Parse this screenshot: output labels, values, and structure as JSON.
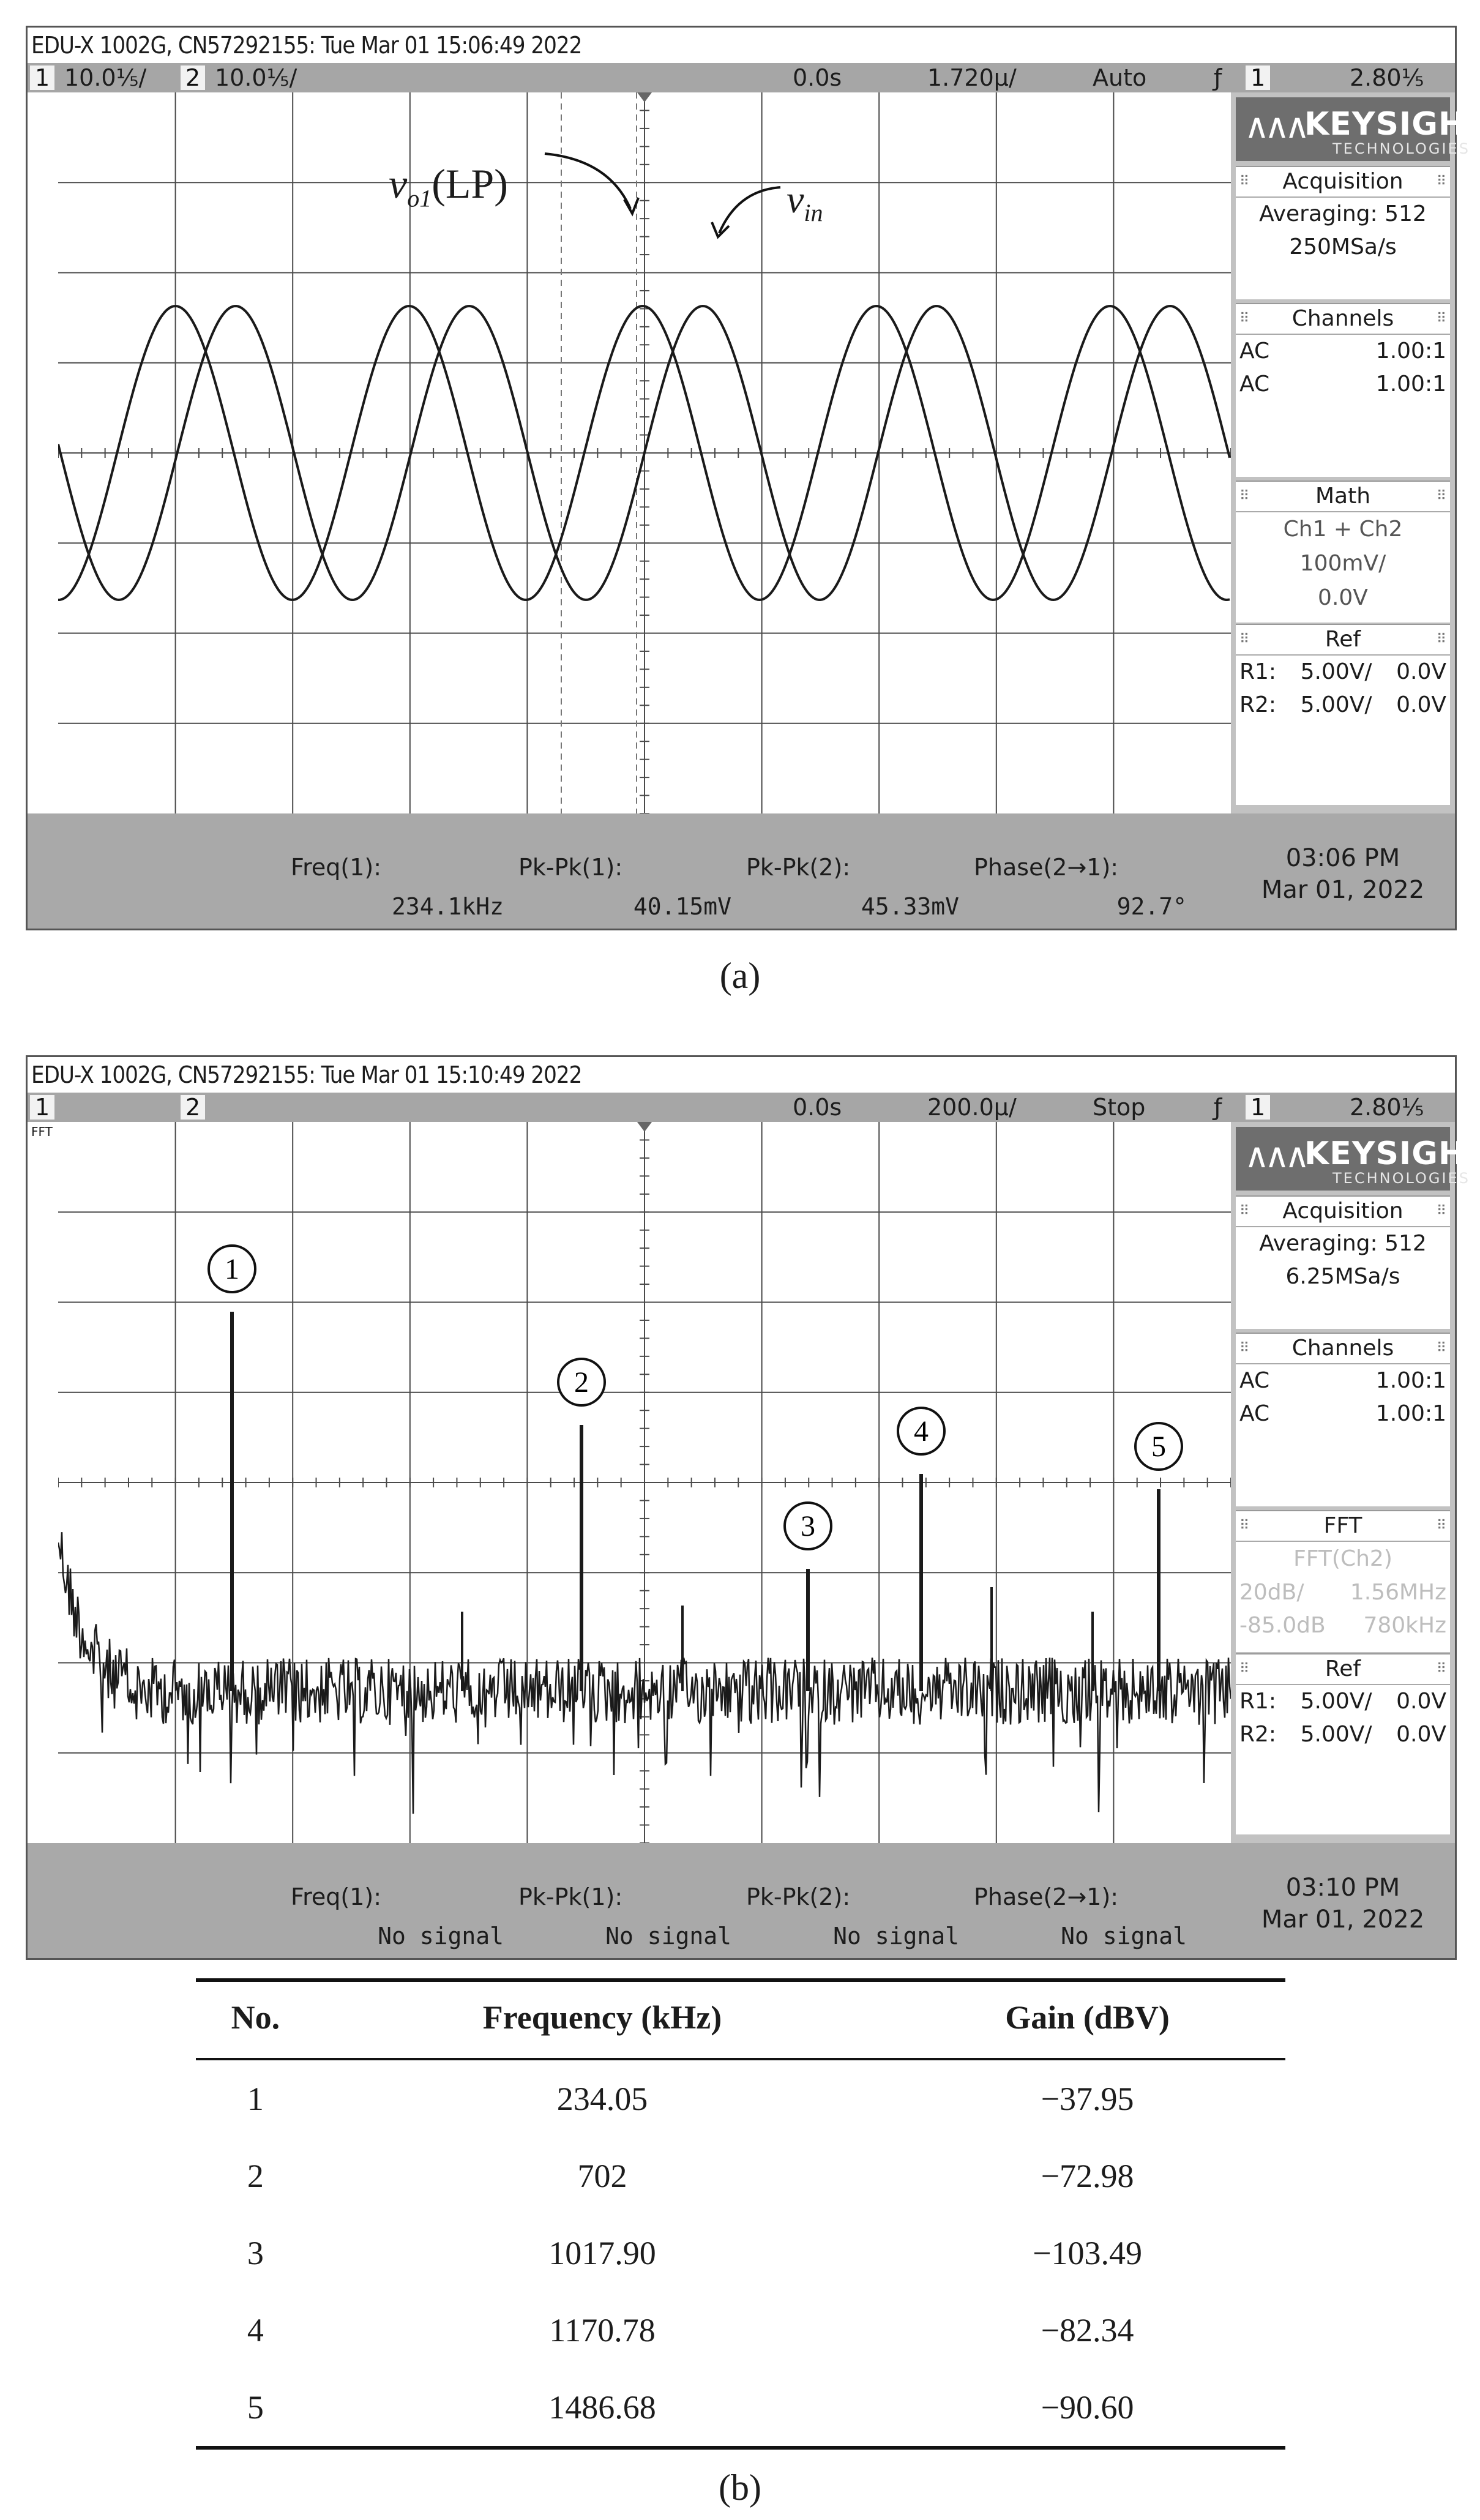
{
  "colors": {
    "trace": "#1a1a1a",
    "grid": "#4a4a4a",
    "statusbar": "#a6a6a6",
    "panel": "#c2c2c2",
    "logo_bg": "#6e6e6e"
  },
  "scope_a": {
    "title": "EDU-X 1002G, CN57292155: Tue Mar 01 15:06:49 2022",
    "ch1_box": "1",
    "ch1_scale": "10.0⅕/",
    "ch2_box": "2",
    "ch2_scale": "10.0⅕/",
    "time_offset": "0.0s",
    "timebase": "1.720µ/",
    "trigger_mode": "Auto",
    "trig_icon": "ƒ",
    "trig_ch": "1",
    "trig_level": "2.80⅕",
    "brand_name": "KEYSIGHT",
    "brand_sub": "TECHNOLOGIES",
    "acq_title": "Acquisition",
    "acq_mode": "Averaging: 512",
    "acq_rate": "250MSa/s",
    "channels_title": "Channels",
    "channels": [
      {
        "coupling": "AC",
        "probe": "1.00:1"
      },
      {
        "coupling": "AC",
        "probe": "1.00:1"
      }
    ],
    "math_title": "Math",
    "math_lines": [
      "Ch1 + Ch2",
      "100mV/",
      "0.0V"
    ],
    "ref_title": "Ref",
    "refs": [
      {
        "name": "R1:",
        "scale": "5.00V/",
        "offset": "0.0V"
      },
      {
        "name": "R2:",
        "scale": "5.00V/",
        "offset": "0.0V"
      }
    ],
    "measurements": [
      {
        "label": "Freq(1):",
        "value": "234.1kHz"
      },
      {
        "label": "Pk-Pk(1):",
        "value": "40.15mV"
      },
      {
        "label": "Pk-Pk(2):",
        "value": "45.33mV"
      },
      {
        "label": "Phase(2→1):",
        "value": "92.7°"
      }
    ],
    "clock_time": "03:06 PM",
    "clock_date": "Mar 01, 2022",
    "annotation_vo1_main": "v",
    "annotation_vo1_sub": "o1",
    "annotation_vo1_rest": "(LP)",
    "annotation_vin_main": "v",
    "annotation_vin_sub": "in",
    "waveform": {
      "periods_on_screen": 5.02,
      "amplitude_vo1_div": 1.63,
      "amplitude_vin_div": 1.63,
      "phase_deg": 92.7
    }
  },
  "caption_a": "(a)",
  "scope_b": {
    "title": "EDU-X 1002G, CN57292155: Tue Mar 01 15:10:49 2022",
    "ch1_box": "1",
    "ch2_box": "2",
    "time_offset": "0.0s",
    "timebase": "200.0µ/",
    "trigger_mode": "Stop",
    "trig_icon": "ƒ",
    "trig_ch": "1",
    "trig_level": "2.80⅕",
    "fft_marker": "FFT",
    "brand_name": "KEYSIGHT",
    "brand_sub": "TECHNOLOGIES",
    "acq_title": "Acquisition",
    "acq_mode": "Averaging: 512",
    "acq_rate": "6.25MSa/s",
    "channels_title": "Channels",
    "channels": [
      {
        "coupling": "AC",
        "probe": "1.00:1"
      },
      {
        "coupling": "AC",
        "probe": "1.00:1"
      }
    ],
    "fft_title": "FFT",
    "fft_source": "FFT(Ch2)",
    "fft_rows": [
      {
        "left": "20dB/",
        "right": "1.56MHz"
      },
      {
        "left": "-85.0dB",
        "right": "780kHz"
      }
    ],
    "ref_title": "Ref",
    "refs": [
      {
        "name": "R1:",
        "scale": "5.00V/",
        "offset": "0.0V"
      },
      {
        "name": "R2:",
        "scale": "5.00V/",
        "offset": "0.0V"
      }
    ],
    "measurements": [
      {
        "label": "Freq(1):",
        "value": "No signal"
      },
      {
        "label": "Pk-Pk(1):",
        "value": "No signal"
      },
      {
        "label": "Pk-Pk(2):",
        "value": "No signal"
      },
      {
        "label": "Phase(2→1):",
        "value": "No signal"
      }
    ],
    "clock_time": "03:10 PM",
    "clock_date": "Mar 01, 2022",
    "peak_labels": [
      "1",
      "2",
      "3",
      "4",
      "5"
    ]
  },
  "caption_b": "(b)",
  "table": {
    "headers": [
      "No.",
      "Frequency (kHz)",
      "Gain (dBV)"
    ],
    "rows": [
      [
        "1",
        "234.05",
        "−37.95"
      ],
      [
        "2",
        "702",
        "−72.98"
      ],
      [
        "3",
        "1017.90",
        "−103.49"
      ],
      [
        "4",
        "1170.78",
        "−82.34"
      ],
      [
        "5",
        "1486.68",
        "−90.60"
      ]
    ]
  },
  "chart_data": {
    "type": "table",
    "columns": [
      "No.",
      "Frequency (kHz)",
      "Gain (dBV)"
    ],
    "x": [
      234.05,
      702,
      1017.9,
      1170.78,
      1486.68
    ],
    "values": [
      -37.95,
      -72.98,
      -103.49,
      -82.34,
      -90.6
    ]
  }
}
